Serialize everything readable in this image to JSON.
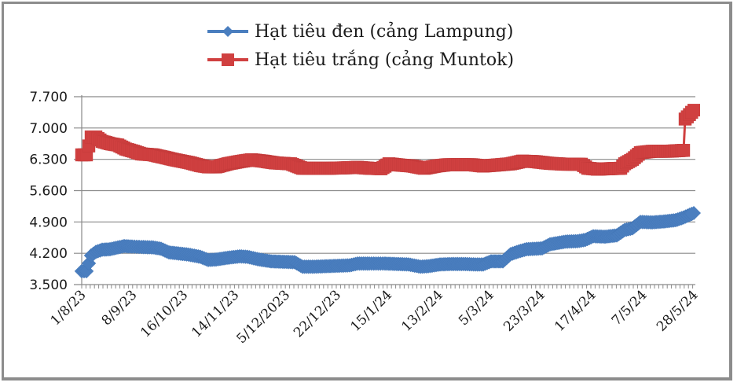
{
  "chart_data": {
    "type": "line",
    "title": "",
    "xlabel": "",
    "ylabel": "",
    "ylim": [
      3500,
      7700
    ],
    "yticks": [
      "3.500",
      "4.200",
      "4.900",
      "5.600",
      "6.300",
      "7.000",
      "7.700"
    ],
    "ytick_values": [
      3500,
      4200,
      4900,
      5600,
      6300,
      7000,
      7700
    ],
    "grid": "horizontal",
    "legend_position": "top",
    "x_tick_labels": [
      "1/8/23",
      "8/9/23",
      "16/10/23",
      "14/11/23",
      "5/12/2023",
      "22/12/23",
      "15/1/24",
      "13/2/24",
      "5/3/24",
      "23/3/24",
      "17/4/24",
      "7/5/24",
      "28/5/24"
    ],
    "x": [
      "1/8/23",
      "8/9/23",
      "16/10/23",
      "14/11/23",
      "5/12/2023",
      "22/12/23",
      "15/1/24",
      "13/2/24",
      "5/3/24",
      "23/3/24",
      "17/4/24",
      "7/5/24",
      "28/5/24"
    ],
    "series": [
      {
        "name": "Hạt tiêu đen (cảng Lampung)",
        "color": "#4a7ebf",
        "marker": "diamond",
        "values": [
          3800,
          4350,
          4180,
          4050,
          3980,
          3880,
          3950,
          3900,
          3950,
          4300,
          4550,
          4900,
          5100
        ]
      },
      {
        "name": "Hạt tiêu trắng (cảng Muntok)",
        "color": "#d04040",
        "marker": "square",
        "values": [
          6400,
          6500,
          6250,
          6150,
          6200,
          6080,
          6100,
          6150,
          6150,
          6220,
          6080,
          6500,
          7400
        ]
      }
    ]
  },
  "legend": {
    "items": [
      {
        "label": "Hạt tiêu đen (cảng Lampung)",
        "color": "#4a7ebf",
        "marker": "diamond"
      },
      {
        "label": "Hạt tiêu trắng (cảng Muntok)",
        "color": "#d04040",
        "marker": "square"
      }
    ]
  },
  "trace": {
    "black": [
      [
        104,
        3800
      ],
      [
        110,
        3800
      ],
      [
        116,
        4150
      ],
      [
        122,
        4230
      ],
      [
        130,
        4280
      ],
      [
        140,
        4290
      ],
      [
        150,
        4330
      ],
      [
        158,
        4360
      ],
      [
        168,
        4350
      ],
      [
        180,
        4340
      ],
      [
        195,
        4330
      ],
      [
        205,
        4300
      ],
      [
        215,
        4220
      ],
      [
        225,
        4200
      ],
      [
        240,
        4170
      ],
      [
        255,
        4120
      ],
      [
        265,
        4050
      ],
      [
        275,
        4060
      ],
      [
        290,
        4100
      ],
      [
        305,
        4130
      ],
      [
        315,
        4120
      ],
      [
        330,
        4060
      ],
      [
        345,
        4020
      ],
      [
        360,
        4010
      ],
      [
        375,
        4000
      ],
      [
        385,
        3900
      ],
      [
        400,
        3900
      ],
      [
        415,
        3910
      ],
      [
        430,
        3920
      ],
      [
        445,
        3930
      ],
      [
        455,
        3970
      ],
      [
        470,
        3970
      ],
      [
        490,
        3970
      ],
      [
        505,
        3960
      ],
      [
        520,
        3950
      ],
      [
        535,
        3900
      ],
      [
        545,
        3910
      ],
      [
        560,
        3950
      ],
      [
        575,
        3960
      ],
      [
        590,
        3960
      ],
      [
        605,
        3950
      ],
      [
        615,
        3950
      ],
      [
        625,
        4020
      ],
      [
        640,
        4020
      ],
      [
        650,
        4180
      ],
      [
        660,
        4240
      ],
      [
        670,
        4290
      ],
      [
        680,
        4300
      ],
      [
        690,
        4310
      ],
      [
        700,
        4400
      ],
      [
        710,
        4430
      ],
      [
        720,
        4460
      ],
      [
        735,
        4470
      ],
      [
        745,
        4500
      ],
      [
        755,
        4580
      ],
      [
        770,
        4570
      ],
      [
        785,
        4600
      ],
      [
        795,
        4720
      ],
      [
        805,
        4760
      ],
      [
        815,
        4900
      ],
      [
        830,
        4890
      ],
      [
        845,
        4910
      ],
      [
        860,
        4940
      ],
      [
        870,
        5000
      ],
      [
        883,
        5100
      ]
    ],
    "white": [
      [
        104,
        6400
      ],
      [
        110,
        6400
      ],
      [
        116,
        6800
      ],
      [
        122,
        6800
      ],
      [
        130,
        6700
      ],
      [
        140,
        6650
      ],
      [
        150,
        6620
      ],
      [
        160,
        6530
      ],
      [
        170,
        6480
      ],
      [
        180,
        6420
      ],
      [
        195,
        6400
      ],
      [
        210,
        6340
      ],
      [
        225,
        6280
      ],
      [
        240,
        6230
      ],
      [
        255,
        6160
      ],
      [
        265,
        6130
      ],
      [
        275,
        6130
      ],
      [
        290,
        6200
      ],
      [
        305,
        6250
      ],
      [
        320,
        6290
      ],
      [
        335,
        6260
      ],
      [
        350,
        6220
      ],
      [
        370,
        6200
      ],
      [
        385,
        6100
      ],
      [
        400,
        6100
      ],
      [
        420,
        6100
      ],
      [
        440,
        6110
      ],
      [
        455,
        6120
      ],
      [
        470,
        6100
      ],
      [
        485,
        6090
      ],
      [
        495,
        6200
      ],
      [
        510,
        6170
      ],
      [
        525,
        6150
      ],
      [
        540,
        6100
      ],
      [
        555,
        6150
      ],
      [
        570,
        6180
      ],
      [
        585,
        6180
      ],
      [
        600,
        6180
      ],
      [
        615,
        6150
      ],
      [
        630,
        6170
      ],
      [
        650,
        6200
      ],
      [
        665,
        6260
      ],
      [
        680,
        6250
      ],
      [
        700,
        6210
      ],
      [
        720,
        6190
      ],
      [
        740,
        6190
      ],
      [
        748,
        6100
      ],
      [
        760,
        6080
      ],
      [
        775,
        6090
      ],
      [
        790,
        6100
      ],
      [
        795,
        6200
      ],
      [
        805,
        6300
      ],
      [
        815,
        6450
      ],
      [
        830,
        6480
      ],
      [
        850,
        6480
      ],
      [
        870,
        6500
      ],
      [
        872,
        7200
      ],
      [
        883,
        7400
      ]
    ]
  }
}
